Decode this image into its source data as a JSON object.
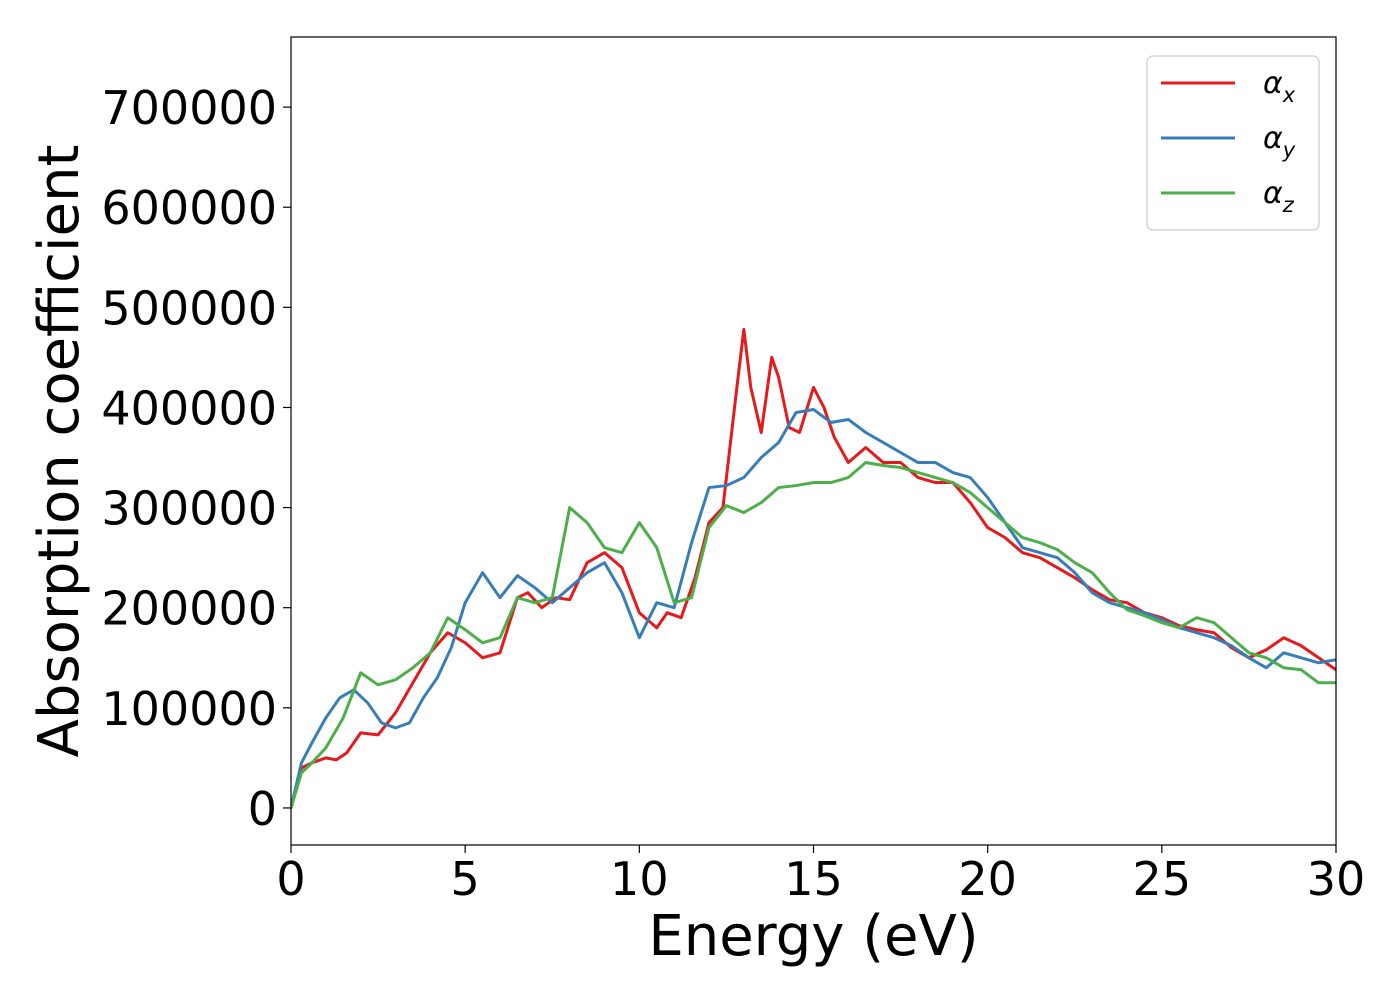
{
  "chart_data": {
    "type": "line",
    "xlabel": "Energy (eV)",
    "ylabel": "Absorption coefficient",
    "xlim": [
      0,
      30
    ],
    "ylim": [
      -37000,
      770000
    ],
    "xticks": [
      0,
      5,
      10,
      15,
      20,
      25,
      30
    ],
    "yticks": [
      0,
      100000,
      200000,
      300000,
      400000,
      500000,
      600000,
      700000
    ],
    "grid": false,
    "legend_position": "top-right",
    "series": [
      {
        "name": "αx",
        "legend_base": "α",
        "legend_sub": "x",
        "color": "#e41a1c",
        "x": [
          0,
          0.3,
          0.6,
          1.0,
          1.3,
          1.6,
          2.0,
          2.5,
          3.0,
          3.5,
          4.0,
          4.5,
          5.0,
          5.5,
          6.0,
          6.5,
          6.8,
          7.2,
          7.6,
          8.0,
          8.5,
          9.0,
          9.5,
          10.0,
          10.5,
          10.8,
          11.2,
          11.6,
          12.0,
          12.4,
          12.8,
          13.0,
          13.2,
          13.5,
          13.8,
          14.0,
          14.3,
          14.6,
          15.0,
          15.3,
          15.6,
          16.0,
          16.5,
          17.0,
          17.5,
          18.0,
          18.5,
          19.0,
          19.5,
          20.0,
          20.5,
          21.0,
          21.5,
          22.0,
          22.5,
          23.0,
          23.5,
          24.0,
          24.5,
          25.0,
          25.5,
          26.0,
          26.5,
          27.0,
          27.5,
          28.0,
          28.5,
          29.0,
          29.5,
          30.0
        ],
        "y": [
          0,
          40000,
          45000,
          50000,
          48000,
          55000,
          75000,
          73000,
          95000,
          125000,
          155000,
          175000,
          165000,
          150000,
          155000,
          210000,
          215000,
          200000,
          210000,
          208000,
          245000,
          255000,
          240000,
          195000,
          180000,
          195000,
          190000,
          230000,
          285000,
          300000,
          420000,
          478000,
          420000,
          375000,
          450000,
          430000,
          380000,
          375000,
          420000,
          400000,
          370000,
          345000,
          360000,
          345000,
          345000,
          330000,
          325000,
          325000,
          305000,
          280000,
          270000,
          255000,
          250000,
          240000,
          230000,
          218000,
          208000,
          205000,
          195000,
          190000,
          182000,
          178000,
          175000,
          160000,
          150000,
          158000,
          170000,
          162000,
          150000,
          138000
        ]
      },
      {
        "name": "αy",
        "legend_base": "α",
        "legend_sub": "y",
        "color": "#377eb8",
        "x": [
          0,
          0.3,
          0.6,
          1.0,
          1.4,
          1.8,
          2.2,
          2.6,
          3.0,
          3.4,
          3.8,
          4.2,
          4.6,
          5.0,
          5.5,
          6.0,
          6.5,
          7.0,
          7.5,
          8.0,
          8.5,
          9.0,
          9.5,
          10.0,
          10.5,
          11.0,
          11.5,
          12.0,
          12.5,
          13.0,
          13.5,
          14.0,
          14.5,
          15.0,
          15.5,
          16.0,
          16.5,
          17.0,
          17.5,
          18.0,
          18.5,
          19.0,
          19.5,
          20.0,
          20.5,
          21.0,
          21.5,
          22.0,
          22.5,
          23.0,
          23.5,
          24.0,
          24.5,
          25.0,
          25.5,
          26.0,
          26.5,
          27.0,
          27.5,
          28.0,
          28.5,
          29.0,
          29.5,
          30.0
        ],
        "y": [
          0,
          45000,
          65000,
          90000,
          110000,
          118000,
          105000,
          85000,
          80000,
          85000,
          110000,
          130000,
          160000,
          205000,
          235000,
          210000,
          232000,
          220000,
          205000,
          220000,
          235000,
          245000,
          215000,
          170000,
          205000,
          200000,
          265000,
          320000,
          322000,
          330000,
          350000,
          365000,
          395000,
          398000,
          385000,
          388000,
          375000,
          365000,
          355000,
          345000,
          345000,
          335000,
          330000,
          310000,
          285000,
          260000,
          255000,
          250000,
          235000,
          215000,
          205000,
          200000,
          195000,
          188000,
          180000,
          175000,
          170000,
          162000,
          150000,
          140000,
          155000,
          150000,
          145000,
          148000
        ]
      },
      {
        "name": "αz",
        "legend_base": "α",
        "legend_sub": "z",
        "color": "#4daf4a",
        "x": [
          0,
          0.3,
          0.6,
          1.0,
          1.5,
          2.0,
          2.5,
          3.0,
          3.5,
          4.0,
          4.5,
          5.0,
          5.5,
          6.0,
          6.5,
          7.0,
          7.5,
          8.0,
          8.5,
          9.0,
          9.5,
          10.0,
          10.5,
          11.0,
          11.5,
          12.0,
          12.5,
          13.0,
          13.5,
          14.0,
          14.5,
          15.0,
          15.5,
          16.0,
          16.5,
          17.0,
          17.5,
          18.0,
          18.5,
          19.0,
          19.5,
          20.0,
          20.5,
          21.0,
          21.5,
          22.0,
          22.5,
          23.0,
          23.5,
          24.0,
          24.5,
          25.0,
          25.5,
          26.0,
          26.5,
          27.0,
          27.5,
          28.0,
          28.5,
          29.0,
          29.5,
          30.0
        ],
        "y": [
          0,
          35000,
          45000,
          60000,
          90000,
          135000,
          123000,
          128000,
          140000,
          155000,
          190000,
          178000,
          165000,
          170000,
          210000,
          205000,
          210000,
          300000,
          285000,
          260000,
          255000,
          285000,
          260000,
          205000,
          210000,
          280000,
          302000,
          295000,
          305000,
          320000,
          322000,
          325000,
          325000,
          330000,
          345000,
          342000,
          340000,
          335000,
          330000,
          325000,
          315000,
          300000,
          285000,
          270000,
          265000,
          258000,
          245000,
          235000,
          215000,
          198000,
          192000,
          185000,
          180000,
          190000,
          185000,
          170000,
          155000,
          150000,
          140000,
          138000,
          125000,
          125000
        ]
      }
    ]
  }
}
